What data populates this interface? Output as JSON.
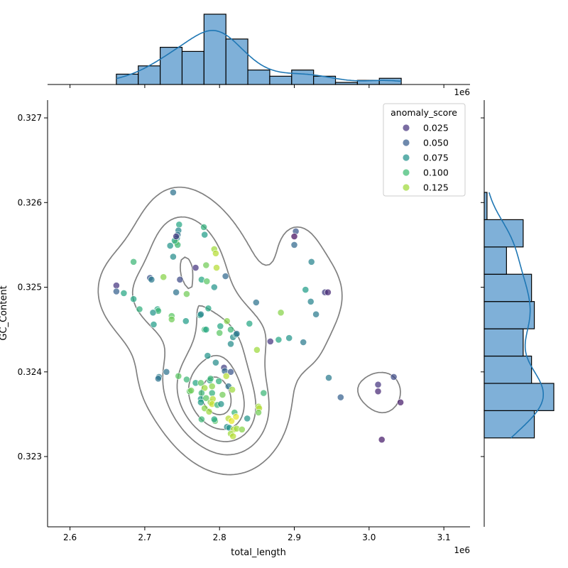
{
  "chart_data": {
    "type": "scatter",
    "xlabel": "total_length",
    "ylabel": "GC_Content",
    "x_offset_label": "1e6",
    "xlim": [
      2.57,
      3.135
    ],
    "ylim": [
      0.32217,
      0.32721
    ],
    "xticks": [
      2.6,
      2.7,
      2.8,
      2.9,
      3.0,
      3.1
    ],
    "xtick_labels": [
      "2.6",
      "2.7",
      "2.8",
      "2.9",
      "3.0",
      "3.1"
    ],
    "yticks": [
      0.323,
      0.324,
      0.325,
      0.326,
      0.327
    ],
    "ytick_labels": [
      "0.323",
      "0.324",
      "0.325",
      "0.326",
      "0.327"
    ],
    "legend": {
      "title": "anomaly_score",
      "placement": "top-right",
      "entries": [
        {
          "label": "0.025",
          "color": "#46337e"
        },
        {
          "label": "0.050",
          "color": "#365c8d"
        },
        {
          "label": "0.075",
          "color": "#21918c"
        },
        {
          "label": "0.100",
          "color": "#3fbc73"
        },
        {
          "label": "0.125",
          "color": "#a0da39"
        }
      ]
    },
    "colormap": [
      "#440154",
      "#46337e",
      "#365c8d",
      "#277f8e",
      "#1fa187",
      "#4ac16d",
      "#a0da39",
      "#fde725"
    ],
    "score_range": [
      0.01,
      0.145
    ],
    "marginal_color": "#7fb0d8",
    "kde_line_color": "#1f77b4",
    "contour_color": "#808080",
    "points": [
      [
        2.738,
        0.32612,
        0.06
      ],
      [
        2.746,
        0.32574,
        0.09
      ],
      [
        2.745,
        0.32567,
        0.07
      ],
      [
        2.744,
        0.32562,
        0.06
      ],
      [
        2.743,
        0.32558,
        0.08
      ],
      [
        2.742,
        0.32553,
        0.12
      ],
      [
        2.744,
        0.3255,
        0.1
      ],
      [
        2.74,
        0.32555,
        0.09
      ],
      [
        2.734,
        0.32549,
        0.08
      ],
      [
        2.742,
        0.3256,
        0.03
      ],
      [
        2.738,
        0.32536,
        0.075
      ],
      [
        2.779,
        0.32571,
        0.095
      ],
      [
        2.78,
        0.32562,
        0.085
      ],
      [
        2.793,
        0.32545,
        0.125
      ],
      [
        2.795,
        0.3254,
        0.13
      ],
      [
        2.782,
        0.32526,
        0.115
      ],
      [
        2.796,
        0.32523,
        0.13
      ],
      [
        2.768,
        0.32523,
        0.03
      ],
      [
        2.747,
        0.32509,
        0.04
      ],
      [
        2.776,
        0.32509,
        0.09
      ],
      [
        2.783,
        0.32507,
        0.11
      ],
      [
        2.793,
        0.325,
        0.08
      ],
      [
        2.808,
        0.32513,
        0.055
      ],
      [
        2.685,
        0.3253,
        0.1
      ],
      [
        2.662,
        0.32502,
        0.03
      ],
      [
        2.662,
        0.32495,
        0.05
      ],
      [
        2.672,
        0.32493,
        0.09
      ],
      [
        2.707,
        0.32511,
        0.045
      ],
      [
        2.709,
        0.32509,
        0.065
      ],
      [
        2.725,
        0.32512,
        0.12
      ],
      [
        2.742,
        0.32494,
        0.06
      ],
      [
        2.756,
        0.32492,
        0.115
      ],
      [
        2.685,
        0.32486,
        0.09
      ],
      [
        2.693,
        0.32474,
        0.095
      ],
      [
        2.717,
        0.32474,
        0.09
      ],
      [
        2.718,
        0.32472,
        0.1
      ],
      [
        2.711,
        0.3247,
        0.08
      ],
      [
        2.736,
        0.32466,
        0.11
      ],
      [
        2.736,
        0.32462,
        0.115
      ],
      [
        2.712,
        0.32456,
        0.085
      ],
      [
        2.755,
        0.3246,
        0.085
      ],
      [
        2.774,
        0.32467,
        0.09
      ],
      [
        2.775,
        0.32468,
        0.07
      ],
      [
        2.785,
        0.32475,
        0.09
      ],
      [
        2.78,
        0.3245,
        0.1
      ],
      [
        2.782,
        0.3245,
        0.09
      ],
      [
        2.801,
        0.32454,
        0.09
      ],
      [
        2.8,
        0.32446,
        0.11
      ],
      [
        2.81,
        0.3246,
        0.12
      ],
      [
        2.815,
        0.3245,
        0.1
      ],
      [
        2.818,
        0.32441,
        0.075
      ],
      [
        2.822,
        0.32444,
        0.08
      ],
      [
        2.823,
        0.32445,
        0.06
      ],
      [
        2.815,
        0.32433,
        0.075
      ],
      [
        2.84,
        0.32457,
        0.09
      ],
      [
        2.849,
        0.32482,
        0.06
      ],
      [
        2.882,
        0.3247,
        0.12
      ],
      [
        2.868,
        0.32436,
        0.03
      ],
      [
        2.879,
        0.32438,
        0.09
      ],
      [
        2.893,
        0.3244,
        0.08
      ],
      [
        2.912,
        0.32435,
        0.065
      ],
      [
        2.929,
        0.32468,
        0.065
      ],
      [
        2.922,
        0.32483,
        0.07
      ],
      [
        2.915,
        0.32497,
        0.085
      ],
      [
        2.941,
        0.32494,
        0.035
      ],
      [
        2.945,
        0.32494,
        0.025
      ],
      [
        2.923,
        0.3253,
        0.07
      ],
      [
        2.9,
        0.3255,
        0.055
      ],
      [
        2.902,
        0.32566,
        0.045
      ],
      [
        2.9,
        0.3256,
        0.015
      ],
      [
        2.85,
        0.32426,
        0.125
      ],
      [
        2.784,
        0.32419,
        0.08
      ],
      [
        2.795,
        0.32411,
        0.075
      ],
      [
        2.806,
        0.32405,
        0.035
      ],
      [
        2.807,
        0.32401,
        0.055
      ],
      [
        2.815,
        0.324,
        0.045
      ],
      [
        2.729,
        0.324,
        0.06
      ],
      [
        2.719,
        0.32394,
        0.065
      ],
      [
        2.718,
        0.32392,
        0.06
      ],
      [
        2.745,
        0.32395,
        0.11
      ],
      [
        2.756,
        0.32391,
        0.1
      ],
      [
        2.768,
        0.32387,
        0.09
      ],
      [
        2.775,
        0.32387,
        0.11
      ],
      [
        2.787,
        0.3239,
        0.09
      ],
      [
        2.788,
        0.32392,
        0.1
      ],
      [
        2.799,
        0.32389,
        0.095
      ],
      [
        2.809,
        0.32395,
        0.13
      ],
      [
        2.79,
        0.32383,
        0.12
      ],
      [
        2.78,
        0.32381,
        0.125
      ],
      [
        2.812,
        0.32383,
        0.06
      ],
      [
        2.817,
        0.32379,
        0.125
      ],
      [
        2.76,
        0.32377,
        0.11
      ],
      [
        2.762,
        0.32378,
        0.115
      ],
      [
        2.776,
        0.32375,
        0.1
      ],
      [
        2.79,
        0.32375,
        0.095
      ],
      [
        2.804,
        0.32373,
        0.115
      ],
      [
        2.775,
        0.32368,
        0.085
      ],
      [
        2.782,
        0.32369,
        0.11
      ],
      [
        2.788,
        0.32364,
        0.12
      ],
      [
        2.791,
        0.32368,
        0.13
      ],
      [
        2.775,
        0.32364,
        0.085
      ],
      [
        2.79,
        0.32362,
        0.135
      ],
      [
        2.797,
        0.32361,
        0.1
      ],
      [
        2.802,
        0.32362,
        0.08
      ],
      [
        2.78,
        0.32357,
        0.12
      ],
      [
        2.786,
        0.32353,
        0.125
      ],
      [
        2.852,
        0.32359,
        0.125
      ],
      [
        2.853,
        0.32357,
        0.13
      ],
      [
        2.852,
        0.32352,
        0.115
      ],
      [
        2.82,
        0.32352,
        0.1
      ],
      [
        2.812,
        0.32345,
        0.13
      ],
      [
        2.816,
        0.32342,
        0.14
      ],
      [
        2.822,
        0.32347,
        0.14
      ],
      [
        2.837,
        0.32345,
        0.08
      ],
      [
        2.776,
        0.32344,
        0.1
      ],
      [
        2.794,
        0.32342,
        0.11
      ],
      [
        2.793,
        0.32344,
        0.09
      ],
      [
        2.81,
        0.32335,
        0.075
      ],
      [
        2.813,
        0.32334,
        0.08
      ],
      [
        2.819,
        0.32332,
        0.13
      ],
      [
        2.823,
        0.32333,
        0.125
      ],
      [
        2.83,
        0.32332,
        0.12
      ],
      [
        2.815,
        0.32327,
        0.125
      ],
      [
        2.818,
        0.32324,
        0.13
      ],
      [
        2.859,
        0.32375,
        0.1
      ],
      [
        2.946,
        0.32393,
        0.065
      ],
      [
        2.962,
        0.3237,
        0.05
      ],
      [
        3.012,
        0.32385,
        0.03
      ],
      [
        3.012,
        0.32377,
        0.025
      ],
      [
        3.033,
        0.32394,
        0.04
      ],
      [
        3.042,
        0.32364,
        0.02
      ],
      [
        3.017,
        0.3232,
        0.02
      ]
    ]
  }
}
